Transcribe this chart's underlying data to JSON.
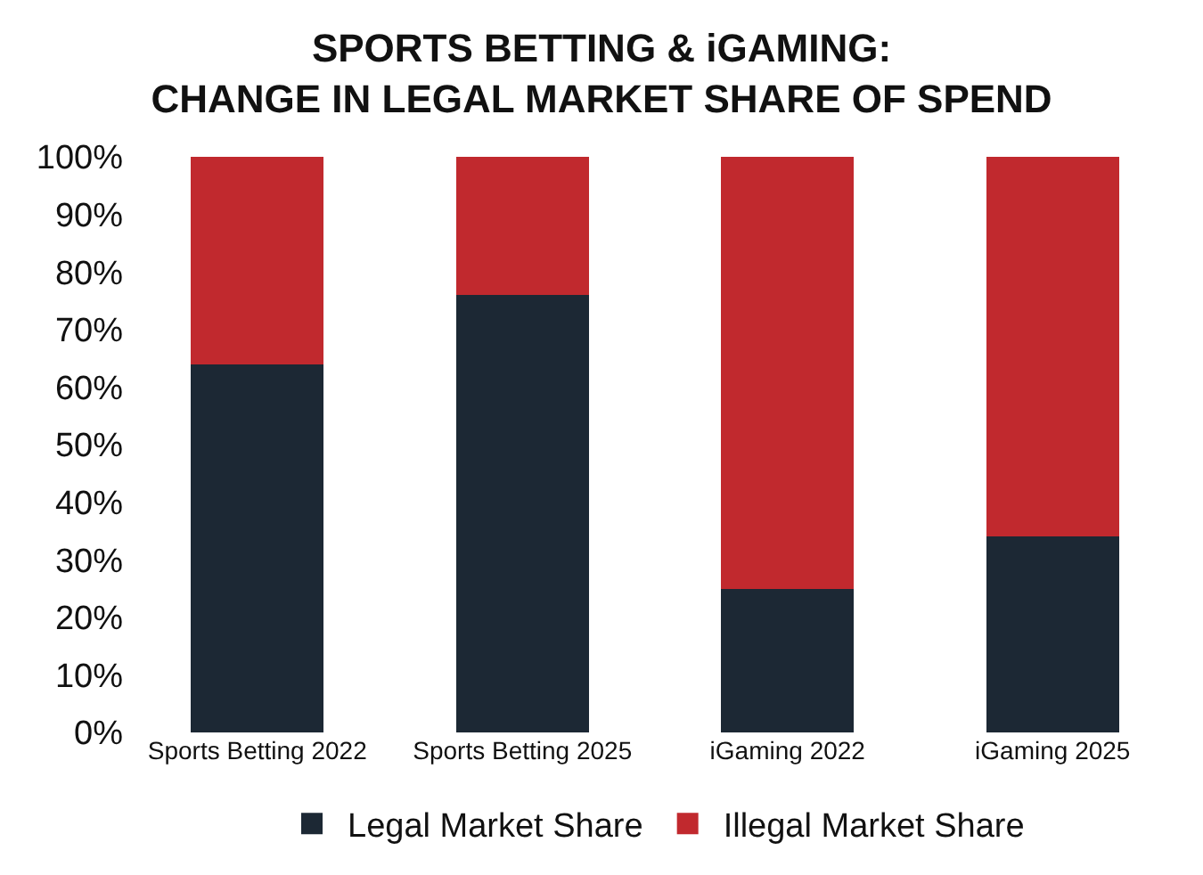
{
  "chart_data": {
    "type": "bar",
    "title": "SPORTS BETTING & iGAMING:\nCHANGE IN LEGAL MARKET SHARE OF SPEND",
    "categories": [
      "Sports Betting 2022",
      "Sports Betting 2025",
      "iGaming 2022",
      "iGaming 2025"
    ],
    "series": [
      {
        "name": "Legal Market Share",
        "color": "#1c2834",
        "values": [
          64,
          76,
          25,
          34
        ]
      },
      {
        "name": "Illegal Market Share",
        "color": "#c1292e",
        "values": [
          36,
          24,
          75,
          66
        ]
      }
    ],
    "stacked": true,
    "ylim": [
      0,
      100
    ],
    "yticks": [
      {
        "value": 0,
        "label": "0%"
      },
      {
        "value": 10,
        "label": "10%"
      },
      {
        "value": 20,
        "label": "20%"
      },
      {
        "value": 30,
        "label": "30%"
      },
      {
        "value": 40,
        "label": "40%"
      },
      {
        "value": 50,
        "label": "50%"
      },
      {
        "value": 60,
        "label": "60%"
      },
      {
        "value": 70,
        "label": "70%"
      },
      {
        "value": 80,
        "label": "80%"
      },
      {
        "value": 90,
        "label": "90%"
      },
      {
        "value": 100,
        "label": "100%"
      }
    ],
    "grid": false,
    "legend": "bottom"
  }
}
